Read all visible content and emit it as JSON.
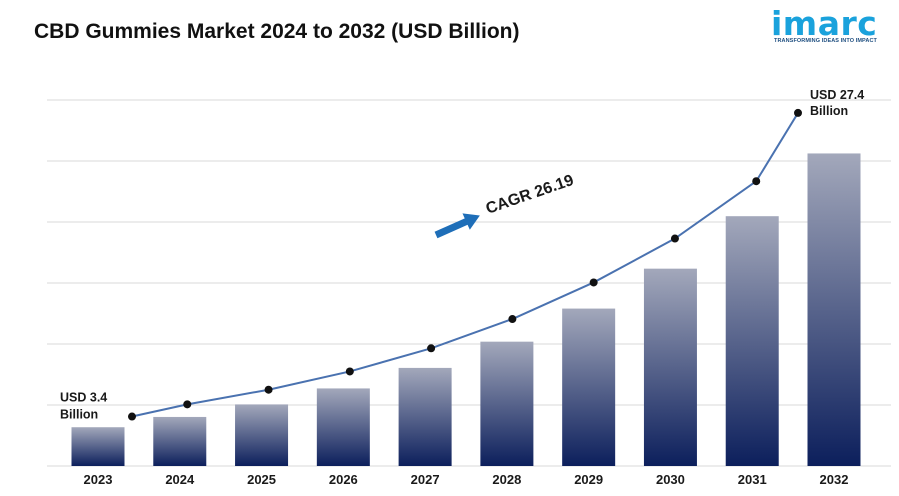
{
  "page": {
    "title": "CBD Gummies Market 2024 to 2032 (USD Billion)",
    "brand": "imarc",
    "brand_tagline": "TRANSFORMING IDEAS INTO IMPACT"
  },
  "colors": {
    "bar_top": "#a3a8bb",
    "bar_bottom": "#0c1f5c",
    "line": "#4a72b0",
    "marker": "#111111",
    "cagr_arrow": "#1e6eb8",
    "grid": "#d9d9d9",
    "brand": "#1aa2dc"
  },
  "chart_data": {
    "type": "bar",
    "title": "CBD Gummies Market 2024 to 2032 (USD Billion)",
    "categories": [
      "2023",
      "2024",
      "2025",
      "2026",
      "2027",
      "2028",
      "2029",
      "2030",
      "2031",
      "2032"
    ],
    "series": [
      {
        "type": "bar",
        "values": [
          3.4,
          4.3,
          5.4,
          6.8,
          8.6,
          10.9,
          13.8,
          17.3,
          21.9,
          27.4
        ]
      },
      {
        "type": "line",
        "values": [
          3.4,
          4.3,
          5.4,
          6.8,
          8.6,
          10.9,
          13.8,
          17.3,
          21.9,
          27.4
        ]
      }
    ],
    "annotations": {
      "start_label": [
        "USD 3.4",
        "Billion"
      ],
      "end_label": [
        "USD 27.4",
        "Billion"
      ],
      "cagr": "CAGR 26.19"
    },
    "ylim": [
      0,
      30
    ],
    "grid": true,
    "legend": "none"
  }
}
